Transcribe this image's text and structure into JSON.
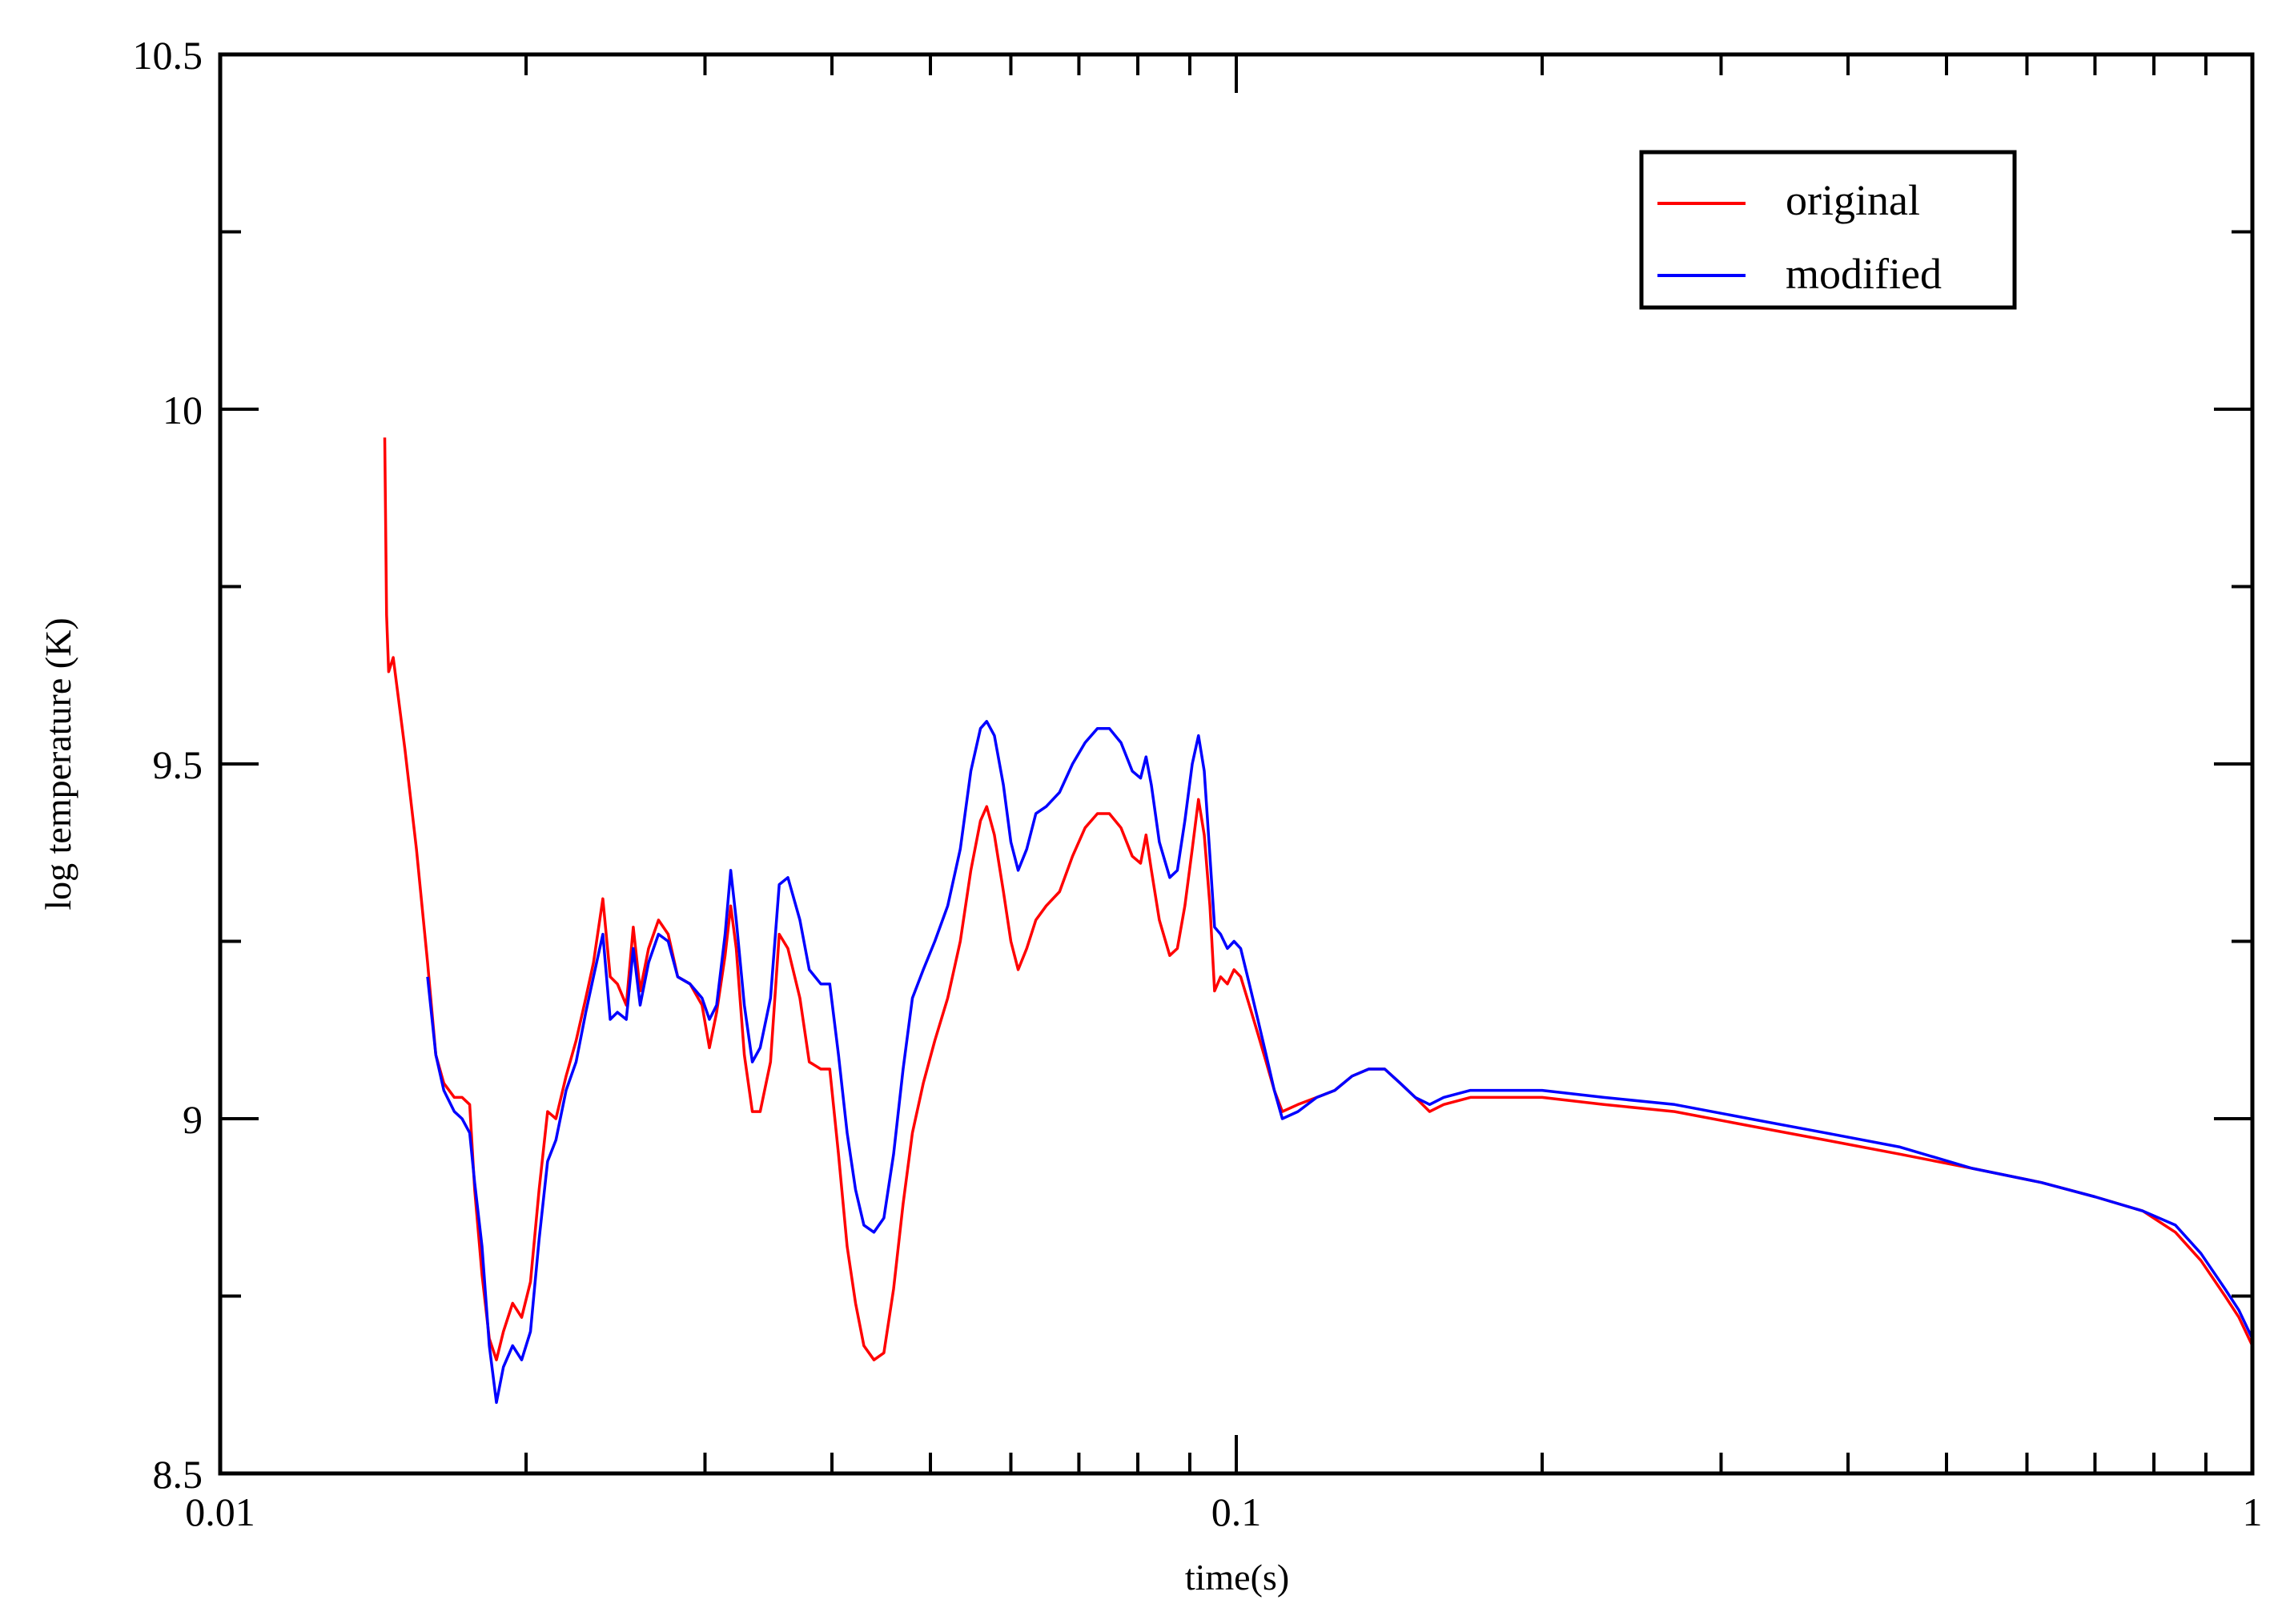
{
  "chart_data": {
    "type": "line",
    "title": "",
    "xlabel": "time(s)",
    "ylabel": "log temperature (K)",
    "xscale": "log",
    "xlim": [
      0.01,
      1
    ],
    "ylim": [
      8.5,
      10.5
    ],
    "grid": false,
    "legend_position": "upper right",
    "x_ticks": [
      {
        "value": 0.01,
        "label": "0.01"
      },
      {
        "value": 0.1,
        "label": "0.1"
      },
      {
        "value": 1,
        "label": "1"
      }
    ],
    "y_ticks": [
      {
        "value": 8.5,
        "label": "8.5"
      },
      {
        "value": 9.0,
        "label": "9"
      },
      {
        "value": 9.5,
        "label": "9.5"
      },
      {
        "value": 10.0,
        "label": "10"
      },
      {
        "value": 10.5,
        "label": "10.5"
      }
    ],
    "series": [
      {
        "name": "original",
        "color": "#ff0000",
        "points": [
          [
            0.01452,
            9.96
          ],
          [
            0.01458,
            9.71
          ],
          [
            0.01465,
            9.63
          ],
          [
            0.0148,
            9.65
          ],
          [
            0.0152,
            9.52
          ],
          [
            0.0156,
            9.38
          ],
          [
            0.016,
            9.22
          ],
          [
            0.0163,
            9.09
          ],
          [
            0.0166,
            9.05
          ],
          [
            0.017,
            9.03
          ],
          [
            0.0173,
            9.03
          ],
          [
            0.0176,
            9.02
          ],
          [
            0.0178,
            8.9
          ],
          [
            0.0181,
            8.78
          ],
          [
            0.0184,
            8.69
          ],
          [
            0.0187,
            8.66
          ],
          [
            0.019,
            8.7
          ],
          [
            0.0194,
            8.74
          ],
          [
            0.0198,
            8.72
          ],
          [
            0.0202,
            8.77
          ],
          [
            0.0206,
            8.9
          ],
          [
            0.021,
            9.01
          ],
          [
            0.0214,
            9.0
          ],
          [
            0.0219,
            9.06
          ],
          [
            0.0224,
            9.11
          ],
          [
            0.0229,
            9.17
          ],
          [
            0.0233,
            9.22
          ],
          [
            0.0238,
            9.31
          ],
          [
            0.0242,
            9.2
          ],
          [
            0.0246,
            9.19
          ],
          [
            0.0251,
            9.16
          ],
          [
            0.0255,
            9.27
          ],
          [
            0.0259,
            9.18
          ],
          [
            0.0264,
            9.24
          ],
          [
            0.027,
            9.28
          ],
          [
            0.0276,
            9.26
          ],
          [
            0.0282,
            9.2
          ],
          [
            0.029,
            9.19
          ],
          [
            0.0298,
            9.16
          ],
          [
            0.0303,
            9.1
          ],
          [
            0.0308,
            9.15
          ],
          [
            0.0314,
            9.23
          ],
          [
            0.0318,
            9.3
          ],
          [
            0.0322,
            9.24
          ],
          [
            0.0328,
            9.09
          ],
          [
            0.0334,
            9.01
          ],
          [
            0.034,
            9.01
          ],
          [
            0.0348,
            9.08
          ],
          [
            0.0355,
            9.26
          ],
          [
            0.0362,
            9.24
          ],
          [
            0.0372,
            9.17
          ],
          [
            0.038,
            9.08
          ],
          [
            0.039,
            9.07
          ],
          [
            0.0398,
            9.07
          ],
          [
            0.0406,
            8.95
          ],
          [
            0.0414,
            8.82
          ],
          [
            0.0422,
            8.74
          ],
          [
            0.043,
            8.68
          ],
          [
            0.044,
            8.66
          ],
          [
            0.045,
            8.67
          ],
          [
            0.046,
            8.76
          ],
          [
            0.047,
            8.88
          ],
          [
            0.048,
            8.98
          ],
          [
            0.0492,
            9.05
          ],
          [
            0.0505,
            9.11
          ],
          [
            0.052,
            9.17
          ],
          [
            0.0535,
            9.25
          ],
          [
            0.0548,
            9.35
          ],
          [
            0.056,
            9.42
          ],
          [
            0.0568,
            9.44
          ],
          [
            0.0578,
            9.4
          ],
          [
            0.059,
            9.32
          ],
          [
            0.06,
            9.25
          ],
          [
            0.061,
            9.21
          ],
          [
            0.0622,
            9.24
          ],
          [
            0.0635,
            9.28
          ],
          [
            0.065,
            9.3
          ],
          [
            0.067,
            9.32
          ],
          [
            0.069,
            9.37
          ],
          [
            0.071,
            9.41
          ],
          [
            0.073,
            9.43
          ],
          [
            0.075,
            9.43
          ],
          [
            0.077,
            9.41
          ],
          [
            0.079,
            9.37
          ],
          [
            0.0805,
            9.36
          ],
          [
            0.0815,
            9.4
          ],
          [
            0.0825,
            9.35
          ],
          [
            0.084,
            9.28
          ],
          [
            0.086,
            9.23
          ],
          [
            0.0875,
            9.24
          ],
          [
            0.089,
            9.3
          ],
          [
            0.0905,
            9.38
          ],
          [
            0.0918,
            9.45
          ],
          [
            0.093,
            9.4
          ],
          [
            0.0942,
            9.3
          ],
          [
            0.0952,
            9.18
          ],
          [
            0.0965,
            9.2
          ],
          [
            0.098,
            9.19
          ],
          [
            0.0995,
            9.21
          ],
          [
            0.101,
            9.2
          ],
          [
            0.103,
            9.16
          ],
          [
            0.105,
            9.12
          ],
          [
            0.107,
            9.08
          ],
          [
            0.109,
            9.04
          ],
          [
            0.111,
            9.01
          ],
          [
            0.115,
            9.02
          ],
          [
            0.12,
            9.03
          ],
          [
            0.125,
            9.04
          ],
          [
            0.13,
            9.06
          ],
          [
            0.135,
            9.07
          ],
          [
            0.14,
            9.07
          ],
          [
            0.145,
            9.05
          ],
          [
            0.15,
            9.03
          ],
          [
            0.155,
            9.01
          ],
          [
            0.16,
            9.02
          ],
          [
            0.17,
            9.03
          ],
          [
            0.185,
            9.03
          ],
          [
            0.2,
            9.03
          ],
          [
            0.23,
            9.02
          ],
          [
            0.27,
            9.01
          ],
          [
            0.32,
            8.99
          ],
          [
            0.38,
            8.97
          ],
          [
            0.45,
            8.95
          ],
          [
            0.53,
            8.93
          ],
          [
            0.62,
            8.91
          ],
          [
            0.7,
            8.89
          ],
          [
            0.78,
            8.87
          ],
          [
            0.84,
            8.84
          ],
          [
            0.89,
            8.8
          ],
          [
            0.94,
            8.75
          ],
          [
            0.97,
            8.72
          ],
          [
            1.0,
            8.68
          ]
        ]
      },
      {
        "name": "modified",
        "color": "#0000ff",
        "points": [
          [
            0.016,
            9.2
          ],
          [
            0.0163,
            9.09
          ],
          [
            0.0166,
            9.04
          ],
          [
            0.017,
            9.01
          ],
          [
            0.0173,
            9.0
          ],
          [
            0.0176,
            8.98
          ],
          [
            0.0178,
            8.91
          ],
          [
            0.0181,
            8.82
          ],
          [
            0.0184,
            8.68
          ],
          [
            0.0187,
            8.6
          ],
          [
            0.019,
            8.65
          ],
          [
            0.0194,
            8.68
          ],
          [
            0.0198,
            8.66
          ],
          [
            0.0202,
            8.7
          ],
          [
            0.0206,
            8.83
          ],
          [
            0.021,
            8.94
          ],
          [
            0.0214,
            8.97
          ],
          [
            0.0219,
            9.04
          ],
          [
            0.0224,
            9.08
          ],
          [
            0.0229,
            9.15
          ],
          [
            0.0233,
            9.2
          ],
          [
            0.0238,
            9.26
          ],
          [
            0.0242,
            9.14
          ],
          [
            0.0246,
            9.15
          ],
          [
            0.0251,
            9.14
          ],
          [
            0.0255,
            9.24
          ],
          [
            0.0259,
            9.16
          ],
          [
            0.0264,
            9.22
          ],
          [
            0.027,
            9.26
          ],
          [
            0.0276,
            9.25
          ],
          [
            0.0282,
            9.2
          ],
          [
            0.029,
            9.19
          ],
          [
            0.0298,
            9.17
          ],
          [
            0.0303,
            9.14
          ],
          [
            0.0308,
            9.16
          ],
          [
            0.0314,
            9.26
          ],
          [
            0.0318,
            9.35
          ],
          [
            0.0322,
            9.28
          ],
          [
            0.0328,
            9.16
          ],
          [
            0.0334,
            9.08
          ],
          [
            0.034,
            9.1
          ],
          [
            0.0348,
            9.17
          ],
          [
            0.0355,
            9.33
          ],
          [
            0.0362,
            9.34
          ],
          [
            0.0372,
            9.28
          ],
          [
            0.038,
            9.21
          ],
          [
            0.039,
            9.19
          ],
          [
            0.0398,
            9.19
          ],
          [
            0.0406,
            9.09
          ],
          [
            0.0414,
            8.98
          ],
          [
            0.0422,
            8.9
          ],
          [
            0.043,
            8.85
          ],
          [
            0.044,
            8.84
          ],
          [
            0.045,
            8.86
          ],
          [
            0.046,
            8.95
          ],
          [
            0.047,
            9.07
          ],
          [
            0.048,
            9.17
          ],
          [
            0.0492,
            9.21
          ],
          [
            0.0505,
            9.25
          ],
          [
            0.052,
            9.3
          ],
          [
            0.0535,
            9.38
          ],
          [
            0.0548,
            9.49
          ],
          [
            0.056,
            9.55
          ],
          [
            0.0568,
            9.56
          ],
          [
            0.0578,
            9.54
          ],
          [
            0.059,
            9.47
          ],
          [
            0.06,
            9.39
          ],
          [
            0.061,
            9.35
          ],
          [
            0.0622,
            9.38
          ],
          [
            0.0635,
            9.43
          ],
          [
            0.065,
            9.44
          ],
          [
            0.067,
            9.46
          ],
          [
            0.069,
            9.5
          ],
          [
            0.071,
            9.53
          ],
          [
            0.073,
            9.55
          ],
          [
            0.075,
            9.55
          ],
          [
            0.077,
            9.53
          ],
          [
            0.079,
            9.49
          ],
          [
            0.0805,
            9.48
          ],
          [
            0.0815,
            9.51
          ],
          [
            0.0825,
            9.47
          ],
          [
            0.084,
            9.39
          ],
          [
            0.086,
            9.34
          ],
          [
            0.0875,
            9.35
          ],
          [
            0.089,
            9.42
          ],
          [
            0.0905,
            9.5
          ],
          [
            0.0918,
            9.54
          ],
          [
            0.093,
            9.49
          ],
          [
            0.0942,
            9.37
          ],
          [
            0.0952,
            9.27
          ],
          [
            0.0965,
            9.26
          ],
          [
            0.098,
            9.24
          ],
          [
            0.0995,
            9.25
          ],
          [
            0.101,
            9.24
          ],
          [
            0.103,
            9.19
          ],
          [
            0.105,
            9.14
          ],
          [
            0.107,
            9.09
          ],
          [
            0.109,
            9.04
          ],
          [
            0.111,
            9.0
          ],
          [
            0.115,
            9.01
          ],
          [
            0.12,
            9.03
          ],
          [
            0.125,
            9.04
          ],
          [
            0.13,
            9.06
          ],
          [
            0.135,
            9.07
          ],
          [
            0.14,
            9.07
          ],
          [
            0.145,
            9.05
          ],
          [
            0.15,
            9.03
          ],
          [
            0.155,
            9.02
          ],
          [
            0.16,
            9.03
          ],
          [
            0.17,
            9.04
          ],
          [
            0.185,
            9.04
          ],
          [
            0.2,
            9.04
          ],
          [
            0.23,
            9.03
          ],
          [
            0.27,
            9.02
          ],
          [
            0.32,
            9.0
          ],
          [
            0.38,
            8.98
          ],
          [
            0.45,
            8.96
          ],
          [
            0.53,
            8.93
          ],
          [
            0.62,
            8.91
          ],
          [
            0.7,
            8.89
          ],
          [
            0.78,
            8.87
          ],
          [
            0.84,
            8.85
          ],
          [
            0.89,
            8.81
          ],
          [
            0.94,
            8.76
          ],
          [
            0.97,
            8.73
          ],
          [
            1.0,
            8.69
          ]
        ]
      }
    ]
  },
  "legend": {
    "items": [
      {
        "label": "original",
        "color": "#ff0000"
      },
      {
        "label": "modified",
        "color": "#0000ff"
      }
    ]
  },
  "axes": {
    "xlabel": "time(s)",
    "ylabel": "log temperature (K)"
  }
}
